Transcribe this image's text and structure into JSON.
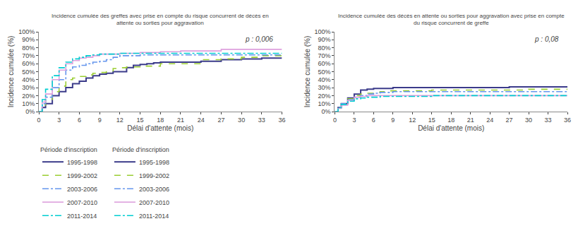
{
  "chart_data": [
    {
      "type": "step",
      "title": "Incidence cumulée des greffes avec prise en compte du risque concurrent de décès en\nattente ou sorties pour aggravation",
      "xlabel": "Délai d'attente (mois)",
      "ylabel": "Incidence cumulée (%)",
      "annotations": [
        "p : 0,006"
      ],
      "legend": "bottom",
      "legend_title": "Période d'inscription",
      "grid": false,
      "xlim": [
        0,
        36
      ],
      "ylim": [
        0,
        100
      ],
      "xticks": [
        0,
        3,
        6,
        9,
        12,
        15,
        18,
        21,
        24,
        27,
        30,
        33,
        36
      ],
      "yticks": [
        {
          "value": 0,
          "label": "0%"
        },
        {
          "value": 10,
          "label": "10%"
        },
        {
          "value": 20,
          "label": "20%"
        },
        {
          "value": 30,
          "label": "30%"
        },
        {
          "value": 40,
          "label": "40%"
        },
        {
          "value": 50,
          "label": "50%"
        },
        {
          "value": 60,
          "label": "60%"
        },
        {
          "value": 70,
          "label": "70%"
        },
        {
          "value": 80,
          "label": "80%"
        },
        {
          "value": 90,
          "label": "90%"
        },
        {
          "value": 100,
          "label": "100%"
        }
      ],
      "series": [
        {
          "name": "1995-1998",
          "color": "#3b3b8a",
          "line_style": "solid",
          "x": [
            0,
            0.5,
            1,
            2,
            3,
            4,
            5,
            6,
            7,
            8,
            9,
            10,
            11,
            12,
            13,
            14,
            15,
            16,
            17,
            18,
            21,
            24,
            27,
            30,
            33,
            36
          ],
          "values": [
            0,
            5,
            10,
            20,
            25,
            30,
            35,
            38,
            42,
            45,
            47,
            48,
            50,
            50,
            55,
            58,
            59,
            60,
            61,
            62,
            62,
            63,
            65,
            66,
            67,
            67
          ]
        },
        {
          "name": "1999-2002",
          "color": "#9acd32",
          "line_style": "dashed",
          "x": [
            0,
            0.5,
            1,
            2,
            3,
            4,
            5,
            6,
            7,
            8,
            9,
            10,
            11,
            12,
            13,
            15,
            18,
            21,
            24,
            27,
            30,
            33,
            36
          ],
          "values": [
            0,
            8,
            15,
            25,
            32,
            40,
            42,
            44,
            46,
            48,
            49,
            50,
            54,
            55,
            56,
            57,
            60,
            60,
            65,
            66,
            68,
            70,
            70
          ]
        },
        {
          "name": "2003-2006",
          "color": "#6495ed",
          "line_style": "dashdot",
          "x": [
            0,
            0.5,
            1,
            2,
            3,
            4,
            5,
            6,
            7,
            8,
            9,
            10,
            11,
            12,
            13,
            15,
            18,
            21,
            24,
            27,
            30,
            33,
            36
          ],
          "values": [
            0,
            10,
            18,
            30,
            40,
            52,
            56,
            58,
            60,
            62,
            63,
            65,
            68,
            70,
            70,
            71,
            71,
            71,
            71,
            71,
            71,
            71,
            71
          ]
        },
        {
          "name": "2007-2010",
          "color": "#dda0dd",
          "line_style": "solid",
          "x": [
            0,
            0.5,
            1,
            2,
            3,
            4,
            5,
            6,
            7,
            8,
            9,
            12,
            15,
            18,
            21,
            24,
            27,
            30,
            33,
            36
          ],
          "values": [
            0,
            12,
            22,
            40,
            52,
            60,
            64,
            67,
            68,
            70,
            72,
            73,
            74,
            75,
            76,
            76,
            78,
            78,
            78,
            78
          ]
        },
        {
          "name": "2011-2014",
          "color": "#00ced1",
          "line_style": "dashdot",
          "x": [
            0,
            0.5,
            1,
            2,
            3,
            4,
            5,
            6,
            7,
            8,
            9,
            12,
            15,
            18,
            21,
            24,
            27,
            30,
            33,
            36
          ],
          "values": [
            0,
            15,
            28,
            45,
            55,
            62,
            66,
            68,
            70,
            71,
            72,
            73,
            73,
            73,
            73,
            73,
            73,
            73,
            73,
            73
          ]
        }
      ]
    },
    {
      "type": "step",
      "title": "Incidence cumulée des décès en attente ou sorties pour aggravation avec prise en compte\ndu risque concurrent de greffe",
      "xlabel": "Délai d'attente (mois)",
      "ylabel": "Incidence cumulée (%)",
      "annotations": [
        "p : 0,08"
      ],
      "legend": "bottom",
      "legend_title": "Période d'inscription",
      "grid": false,
      "xlim": [
        0,
        36
      ],
      "ylim": [
        0,
        100
      ],
      "xticks": [
        0,
        3,
        6,
        9,
        12,
        15,
        18,
        21,
        24,
        27,
        30,
        33,
        36
      ],
      "yticks": [
        {
          "value": 0,
          "label": "0%"
        },
        {
          "value": 10,
          "label": "10%"
        },
        {
          "value": 20,
          "label": "20%"
        },
        {
          "value": 30,
          "label": "30%"
        },
        {
          "value": 40,
          "label": "40%"
        },
        {
          "value": 50,
          "label": "50%"
        },
        {
          "value": 60,
          "label": "60%"
        },
        {
          "value": 70,
          "label": "70%"
        },
        {
          "value": 80,
          "label": "80%"
        },
        {
          "value": 90,
          "label": "90%"
        },
        {
          "value": 100,
          "label": "100%"
        }
      ],
      "series": [
        {
          "name": "1995-1998",
          "color": "#3b3b8a",
          "line_style": "solid",
          "x": [
            0,
            0.5,
            1,
            2,
            3,
            4,
            5,
            6,
            7,
            8,
            9,
            10,
            12,
            18,
            24,
            26,
            27,
            30,
            33,
            36
          ],
          "values": [
            0,
            5,
            10,
            17,
            22,
            27,
            28,
            29,
            29,
            29,
            30,
            30,
            30,
            30,
            30,
            30,
            31,
            31,
            31,
            31
          ]
        },
        {
          "name": "1999-2002",
          "color": "#9acd32",
          "line_style": "dashed",
          "x": [
            0,
            0.5,
            1,
            2,
            3,
            4,
            5,
            6,
            7,
            8,
            9,
            12,
            15,
            18,
            21,
            24,
            27,
            30,
            33,
            36
          ],
          "values": [
            0,
            5,
            10,
            16,
            20,
            22,
            23,
            24,
            25,
            26,
            26,
            26,
            27,
            27,
            27,
            27,
            27,
            28,
            28,
            28
          ]
        },
        {
          "name": "2003-2006",
          "color": "#6495ed",
          "line_style": "dashdot",
          "x": [
            0,
            0.5,
            1,
            2,
            3,
            4,
            5,
            6,
            7,
            8,
            9,
            12,
            15,
            18,
            21,
            24,
            27,
            30,
            33,
            36
          ],
          "values": [
            0,
            5,
            10,
            15,
            18,
            20,
            22,
            23,
            24,
            24,
            25,
            25,
            25,
            25,
            25,
            25,
            25,
            25,
            25,
            25
          ]
        },
        {
          "name": "2007-2010",
          "color": "#dda0dd",
          "line_style": "solid",
          "x": [
            0,
            0.5,
            1,
            2,
            3,
            4,
            5,
            6,
            7,
            8,
            9,
            12,
            15,
            18,
            21,
            24,
            27,
            30,
            33,
            36
          ],
          "values": [
            0,
            4,
            8,
            14,
            18,
            19,
            20,
            20,
            20,
            20,
            20,
            20,
            20,
            20,
            20,
            20,
            20,
            20,
            20,
            20
          ]
        },
        {
          "name": "2011-2014",
          "color": "#00ced1",
          "line_style": "dashdot",
          "x": [
            0,
            0.5,
            1,
            2,
            3,
            4,
            5,
            6,
            7,
            8,
            9,
            12,
            15,
            18,
            21,
            24,
            27,
            30,
            33,
            36
          ],
          "values": [
            0,
            5,
            9,
            13,
            16,
            17,
            18,
            18,
            19,
            19,
            19,
            19,
            20,
            20,
            20,
            20,
            20,
            20,
            20,
            20
          ]
        }
      ]
    }
  ]
}
